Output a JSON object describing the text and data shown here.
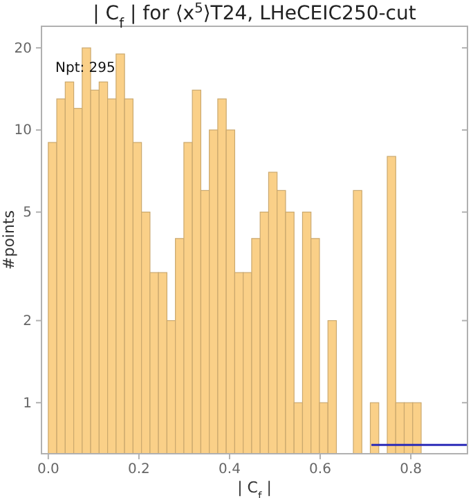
{
  "chart_data": {
    "type": "histogram",
    "title": "| C$_{f}$ | for ⟨x$^{5}$⟩T24, LHeCEIC250-cut",
    "xlabel": "| C$_{f}$ |",
    "ylabel": "#points",
    "annotations": [
      "Npt: 295"
    ],
    "bins": [
      0,
      0.0187,
      0.0374,
      0.0561,
      0.0748,
      0.0935,
      0.1122,
      0.1309,
      0.1496,
      0.1683,
      0.187,
      0.2057,
      0.2244,
      0.2431,
      0.2618,
      0.2805,
      0.2992,
      0.3179,
      0.3366,
      0.3553,
      0.374,
      0.3927,
      0.4114,
      0.4301,
      0.4488,
      0.4675,
      0.4862,
      0.5049,
      0.5236,
      0.5423,
      0.561,
      0.5797,
      0.5984,
      0.6171,
      0.6358,
      0.6545,
      0.6732,
      0.6919,
      0.7106,
      0.7293,
      0.748,
      0.7667,
      0.7854,
      0.8041,
      0.8228
    ],
    "values": [
      9,
      13,
      15,
      12,
      20,
      14,
      15,
      13,
      19,
      13,
      9,
      5,
      3,
      3,
      2,
      4,
      9,
      14,
      6,
      10,
      13,
      10,
      3,
      3,
      4,
      5,
      7,
      6,
      5,
      1,
      5,
      4,
      1,
      2,
      null,
      null,
      6,
      null,
      1,
      null,
      8,
      1,
      1,
      1
    ],
    "color": "#fad088",
    "series": [
      {
        "type": "line",
        "x": [
          0.713,
          0.925
        ],
        "values": [
          0.7,
          0.7
        ],
        "color": "#2b2bb8"
      }
    ],
    "log": true,
    "xlim": [
      -0.015,
      0.925
    ],
    "ylim": [
      0.65,
      24
    ],
    "xticks": [
      {
        "value": 0,
        "label": "0.0"
      },
      0.2,
      0.4,
      0.6,
      0.8
    ],
    "yticks": [
      1,
      2,
      5,
      10,
      20
    ],
    "grid": false
  }
}
